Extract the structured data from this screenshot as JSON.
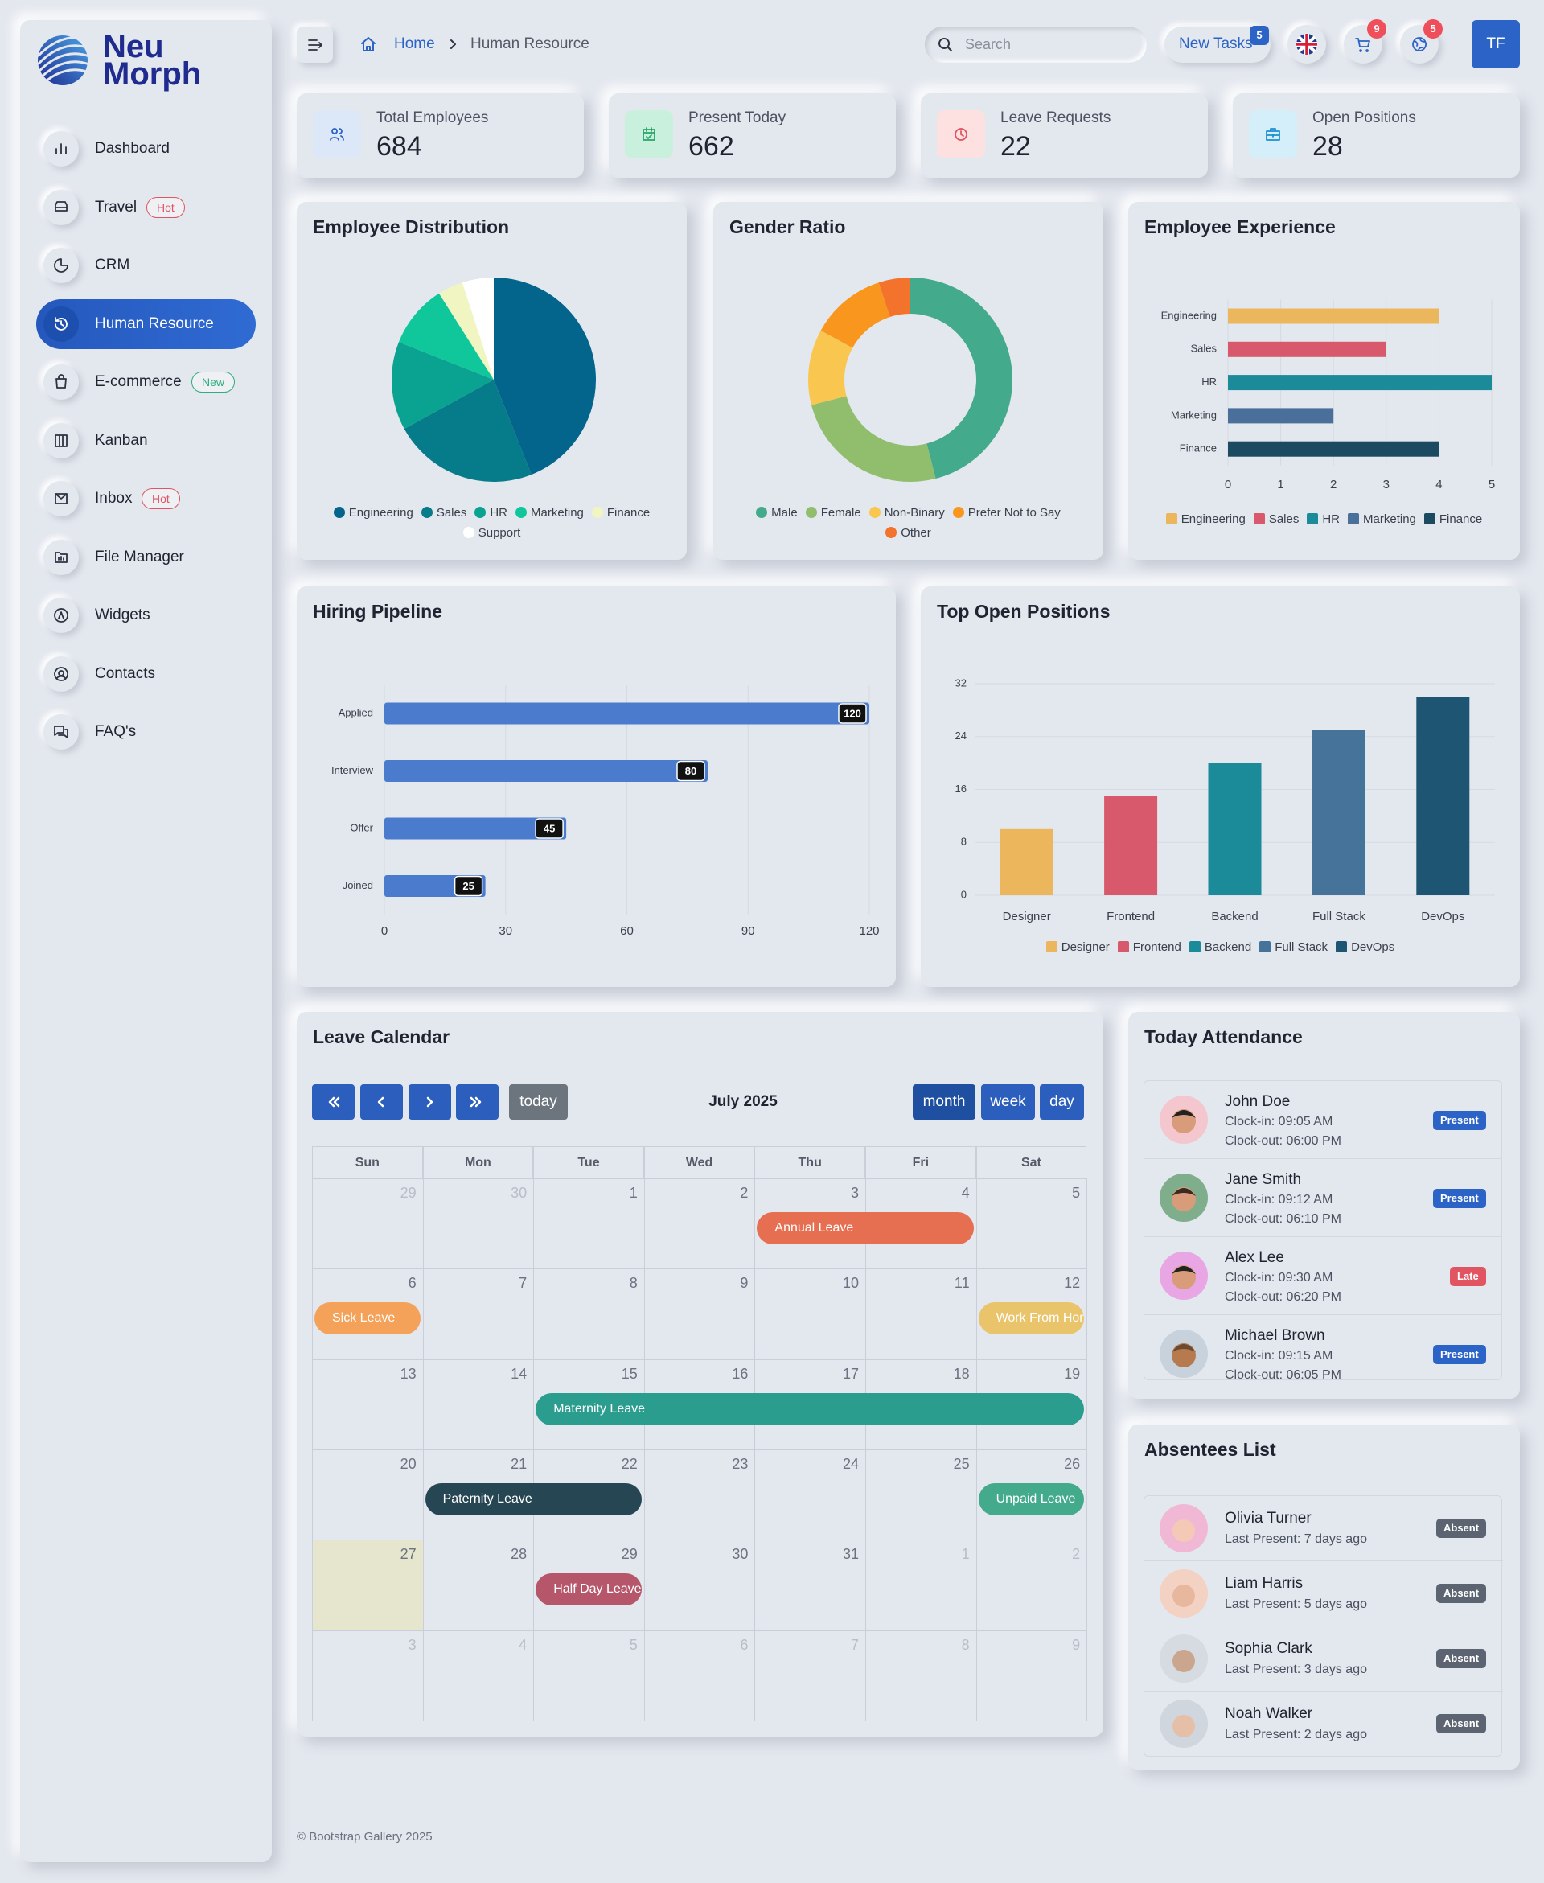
{
  "brand": {
    "line1": "Neu",
    "line2": "Morph"
  },
  "sidebar": [
    {
      "label": "Dashboard"
    },
    {
      "label": "Travel",
      "badge": "Hot",
      "badge_color": "#e05561"
    },
    {
      "label": "CRM"
    },
    {
      "label": "Human Resource",
      "active": true
    },
    {
      "label": "E-commerce",
      "badge": "New",
      "badge_color": "#2fae7d"
    },
    {
      "label": "Kanban"
    },
    {
      "label": "Inbox",
      "badge": "Hot",
      "badge_color": "#e05561"
    },
    {
      "label": "File Manager"
    },
    {
      "label": "Widgets"
    },
    {
      "label": "Contacts"
    },
    {
      "label": "FAQ's"
    }
  ],
  "breadcrumb": [
    "Home",
    "Human Resource"
  ],
  "search_placeholder": "Search",
  "header": {
    "tasks_label": "New Tasks",
    "tasks_count": 5,
    "cart_count": 9,
    "notif_count": 5,
    "avatar": "TF"
  },
  "stats": [
    {
      "label": "Total Employees",
      "value": 684
    },
    {
      "label": "Present Today",
      "value": 662
    },
    {
      "label": "Leave Requests",
      "value": 22
    },
    {
      "label": "Open Positions",
      "value": 28
    }
  ],
  "chart_data": [
    {
      "type": "pie",
      "title": "Employee Distribution",
      "categories": [
        "Engineering",
        "Sales",
        "HR",
        "Marketing",
        "Finance",
        "Support"
      ],
      "values": [
        44,
        23,
        14,
        10,
        4,
        5
      ],
      "colors": [
        "#03658c",
        "#067b8a",
        "#0aa290",
        "#0fc79b",
        "#f1f5c2",
        "#ffffff"
      ]
    },
    {
      "type": "donut",
      "title": "Gender Ratio",
      "categories": [
        "Male",
        "Female",
        "Non-Binary",
        "Prefer Not to Say",
        "Other"
      ],
      "values": [
        46,
        25,
        12,
        12,
        5
      ],
      "colors": [
        "#43aa8b",
        "#90be6d",
        "#f9c74f",
        "#f8961e",
        "#f3722c"
      ]
    },
    {
      "type": "hbar",
      "title": "Employee Experience",
      "categories": [
        "Engineering",
        "Sales",
        "HR",
        "Marketing",
        "Finance"
      ],
      "values": [
        4,
        3,
        5,
        2,
        4
      ],
      "colors": [
        "#ecb75c",
        "#d9596c",
        "#1b8a99",
        "#4a6f9a",
        "#1b4a61"
      ],
      "xlim": [
        0,
        5
      ],
      "xticks": [
        0,
        1,
        2,
        3,
        4,
        5
      ],
      "legend": true
    },
    {
      "type": "hbar",
      "title": "Hiring Pipeline",
      "categories": [
        "Applied",
        "Interview",
        "Offer",
        "Joined"
      ],
      "values": [
        120,
        80,
        45,
        25
      ],
      "color": "#4a7bcc",
      "xlim": [
        0,
        120
      ],
      "xticks": [
        0,
        30,
        60,
        90,
        120
      ],
      "data_labels": true
    },
    {
      "type": "bar",
      "title": "Top Open Positions",
      "categories": [
        "Designer",
        "Frontend",
        "Backend",
        "Full Stack",
        "DevOps"
      ],
      "values": [
        10,
        15,
        20,
        25,
        30
      ],
      "colors": [
        "#ecb75c",
        "#d9596c",
        "#1b8a99",
        "#457399",
        "#1e5572"
      ],
      "ylim": [
        0,
        32
      ],
      "yticks": [
        0,
        8,
        16,
        24,
        32
      ],
      "grid": true,
      "legend": true
    }
  ],
  "calendar": {
    "title": "Leave Calendar",
    "month": "July 2025",
    "today_label": "today",
    "views": [
      "month",
      "week",
      "day"
    ],
    "weekdays": [
      "Sun",
      "Mon",
      "Tue",
      "Wed",
      "Thu",
      "Fri",
      "Sat"
    ],
    "weeks": [
      [
        29,
        30,
        1,
        2,
        3,
        4,
        5
      ],
      [
        6,
        7,
        8,
        9,
        10,
        11,
        12
      ],
      [
        13,
        14,
        15,
        16,
        17,
        18,
        19
      ],
      [
        20,
        21,
        22,
        23,
        24,
        25,
        26
      ],
      [
        27,
        28,
        29,
        30,
        31,
        1,
        2
      ],
      [
        3,
        4,
        5,
        6,
        7,
        8,
        9
      ]
    ],
    "highlight": 27,
    "events": [
      {
        "label": "Annual Leave",
        "start": 3,
        "end": 4,
        "color": "#e76f51"
      },
      {
        "label": "Sick Leave",
        "start": 6,
        "end": 6,
        "color": "#f4a259"
      },
      {
        "label": "Work From Home",
        "start": 12,
        "end": 12,
        "color": "#e9c46a"
      },
      {
        "label": "Maternity Leave",
        "start": 15,
        "end": 19,
        "color": "#2a9d8f"
      },
      {
        "label": "Paternity Leave",
        "start": 21,
        "end": 22,
        "color": "#264653"
      },
      {
        "label": "Unpaid Leave",
        "start": 26,
        "end": 26,
        "color": "#43aa8b"
      },
      {
        "label": "Half Day Leave",
        "start": 29,
        "end": 29,
        "color": "#b5566a"
      }
    ]
  },
  "attendance": {
    "title": "Today Attendance",
    "people": [
      {
        "name": "John Doe",
        "clock_in": "Clock-in: 09:05 AM",
        "clock_out": "Clock-out: 06:00 PM",
        "status": "Present",
        "color": "#2b63c6"
      },
      {
        "name": "Jane Smith",
        "clock_in": "Clock-in: 09:12 AM",
        "clock_out": "Clock-out: 06:10 PM",
        "status": "Present",
        "color": "#2b63c6"
      },
      {
        "name": "Alex Lee",
        "clock_in": "Clock-in: 09:30 AM",
        "clock_out": "Clock-out: 06:20 PM",
        "status": "Late",
        "color": "#e05561"
      },
      {
        "name": "Michael Brown",
        "clock_in": "Clock-in: 09:15 AM",
        "clock_out": "Clock-out: 06:05 PM",
        "status": "Present",
        "color": "#2b63c6"
      }
    ]
  },
  "absentees": {
    "title": "Absentees List",
    "people": [
      {
        "name": "Olivia Turner",
        "last": "Last Present: 7 days ago",
        "status": "Absent"
      },
      {
        "name": "Liam Harris",
        "last": "Last Present: 5 days ago",
        "status": "Absent"
      },
      {
        "name": "Sophia Clark",
        "last": "Last Present: 3 days ago",
        "status": "Absent"
      },
      {
        "name": "Noah Walker",
        "last": "Last Present: 2 days ago",
        "status": "Absent"
      }
    ]
  },
  "footer": "© Bootstrap Gallery 2025"
}
